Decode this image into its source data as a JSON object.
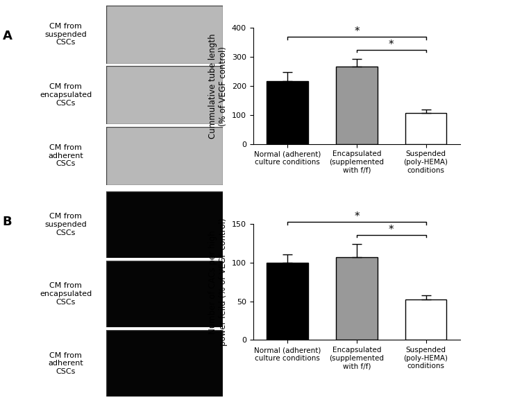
{
  "chart_data": [
    {
      "type": "bar",
      "panel": "A",
      "image_labels": [
        "CM from\nsuspended\nCSCs",
        "CM from\nencapsulated\nCSCs",
        "CM from\nadherent\nCSCs"
      ],
      "y_label": "Cummulative tube length\n(% of VEGF control)",
      "categories": [
        "Normal (adherent)\nculture conditions",
        "Encapsulated\n(supplemented\nwith f/f)",
        "Suspended\n(poly-HEMA)\nconditions"
      ],
      "values": [
        218,
        268,
        108
      ],
      "errors": [
        30,
        25,
        10
      ],
      "colors": [
        "#000000",
        "#999999",
        "#ffffff"
      ],
      "ylim": [
        0,
        400
      ],
      "yticks": [
        0,
        100,
        200,
        300,
        400
      ],
      "significance": [
        {
          "between": [
            "Normal (adherent)\nculture conditions",
            "Suspended\n(poly-HEMA)\nconditions"
          ],
          "label": "*"
        },
        {
          "between": [
            "Encapsulated\n(supplemented\nwith f/f)",
            "Suspended\n(poly-HEMA)\nconditions"
          ],
          "label": "*"
        }
      ]
    },
    {
      "type": "bar",
      "panel": "B",
      "image_labels": [
        "CM from\nsuspended\nCSCs",
        "CM from\nencapsulated\nCSCs",
        "CM from\nadherent\nCSCs"
      ],
      "y_label": "Number of CACs per high\npower feild (% of VEGF control)",
      "categories": [
        "Normal (adherent)\nculture conditions",
        "Encapsulated\n(supplemented\nwith f/f)",
        "Suspended\n(poly-HEMA)\nconditions"
      ],
      "values": [
        100,
        107,
        52
      ],
      "errors": [
        11,
        17,
        6
      ],
      "colors": [
        "#000000",
        "#999999",
        "#ffffff"
      ],
      "ylim": [
        0,
        150
      ],
      "yticks": [
        0,
        50,
        100,
        150
      ],
      "significance": [
        {
          "between": [
            "Normal (adherent)\nculture conditions",
            "Suspended\n(poly-HEMA)\nconditions"
          ],
          "label": "*"
        },
        {
          "between": [
            "Encapsulated\n(supplemented\nwith f/f)",
            "Suspended\n(poly-HEMA)\nconditions"
          ],
          "label": "*"
        }
      ]
    }
  ]
}
